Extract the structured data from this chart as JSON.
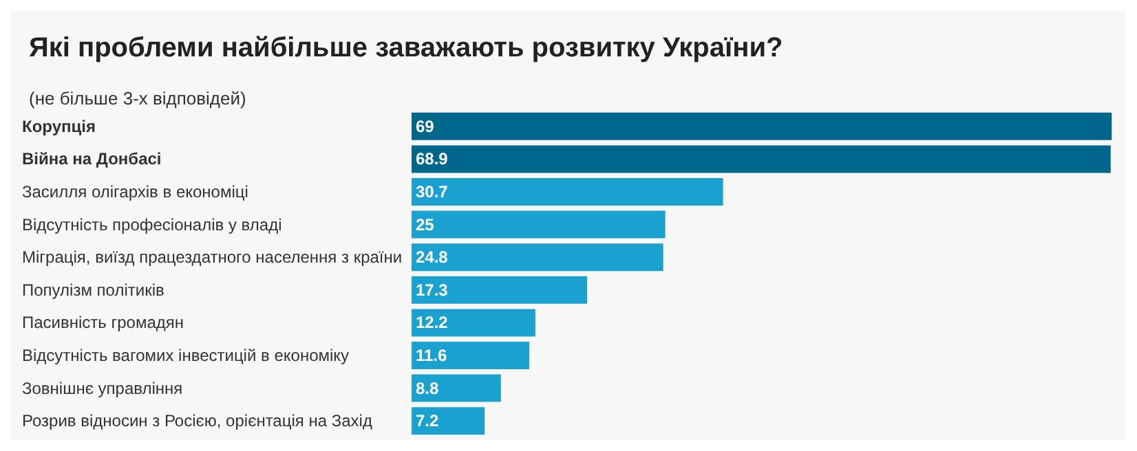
{
  "chart_data": {
    "type": "bar",
    "orientation": "horizontal",
    "title": "Які проблеми найбільше заважають розвитку України?",
    "subtitle": "(не більше 3-х відповідей)",
    "categories": [
      "Корупція",
      "Війна на Донбасі",
      "Засилля олігархів в економіці",
      "Відсутність професіоналів у владі",
      "Міграція, виїзд працездатного населення з країни",
      "Популізм політиків",
      "Пасивність громадян",
      "Відсутність вагомих інвестицій в економіку",
      "Зовнішнє управління",
      "Розрив відносин з Росією, орієнтація на Захід"
    ],
    "values": [
      69,
      68.9,
      30.7,
      25,
      24.8,
      17.3,
      12.2,
      11.6,
      8.8,
      7.2
    ],
    "colors": [
      "#00668c",
      "#00668c",
      "#1ba1cf",
      "#1ba1cf",
      "#1ba1cf",
      "#1ba1cf",
      "#1ba1cf",
      "#1ba1cf",
      "#1ba1cf",
      "#1ba1cf"
    ],
    "data_labels": true
  }
}
